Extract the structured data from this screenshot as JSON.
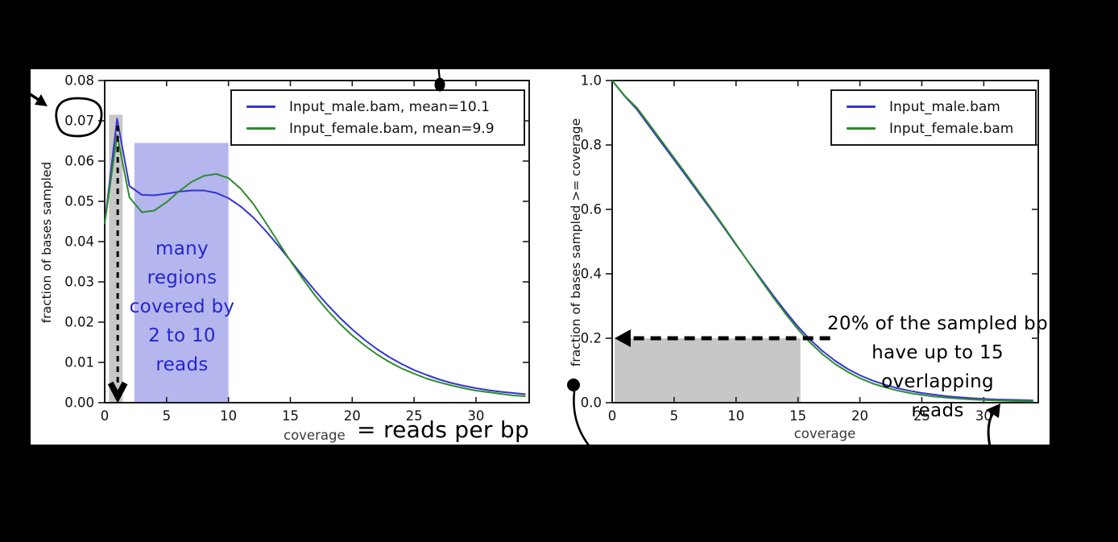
{
  "colors": {
    "male": "#3434d2",
    "female": "#2e8b2e",
    "band_gray": "#c7c7c7",
    "region_blue": "#b6b6ee",
    "annotation_blue": "#2525cc",
    "ink": "#000000",
    "axis_label_gray": "#3a3a3a",
    "panel": "#ffffff",
    "background": "#000000"
  },
  "chart_data": [
    {
      "id": "coverage-histogram",
      "type": "line",
      "xlabel": "coverage",
      "xlabel_handwritten": "= reads per bp",
      "ylabel": "fraction of bases sampled",
      "xlim": [
        0,
        34.3
      ],
      "ylim": [
        0,
        0.08
      ],
      "xticks": [
        0,
        5,
        10,
        15,
        20,
        25,
        30
      ],
      "yticks": [
        "0.00",
        "0.01",
        "0.02",
        "0.03",
        "0.04",
        "0.05",
        "0.06",
        "0.07",
        "0.08"
      ],
      "grid": false,
      "legend_position": "upper right",
      "circled_tick": "0.07",
      "annotation": {
        "text": "many\nregions\ncovered by\n2 to 10\nreads"
      },
      "series": [
        {
          "name": "Input_male.bam, mean=10.1",
          "color_key": "male",
          "points": [
            [
              0,
              0.0445
            ],
            [
              1,
              0.0705
            ],
            [
              2,
              0.0538
            ],
            [
              3,
              0.0516
            ],
            [
              4,
              0.0515
            ],
            [
              5,
              0.0519
            ],
            [
              6,
              0.0524
            ],
            [
              7,
              0.0527
            ],
            [
              8,
              0.0527
            ],
            [
              9,
              0.0521
            ],
            [
              10,
              0.0508
            ],
            [
              11,
              0.0487
            ],
            [
              12,
              0.046
            ],
            [
              13,
              0.0427
            ],
            [
              14,
              0.0391
            ],
            [
              15,
              0.0353
            ],
            [
              16,
              0.0315
            ],
            [
              17,
              0.0278
            ],
            [
              18,
              0.0243
            ],
            [
              19,
              0.0211
            ],
            [
              20,
              0.0182
            ],
            [
              21,
              0.0156
            ],
            [
              22,
              0.0133
            ],
            [
              23,
              0.0113
            ],
            [
              24,
              0.0096
            ],
            [
              25,
              0.0081
            ],
            [
              26,
              0.0069
            ],
            [
              27,
              0.0058
            ],
            [
              28,
              0.0049
            ],
            [
              29,
              0.0042
            ],
            [
              30,
              0.0036
            ],
            [
              31,
              0.0031
            ],
            [
              32,
              0.0027
            ],
            [
              33,
              0.0024
            ],
            [
              34,
              0.0021
            ]
          ]
        },
        {
          "name": "Input_female.bam, mean=9.9",
          "color_key": "female",
          "points": [
            [
              0,
              0.0445
            ],
            [
              1,
              0.0665
            ],
            [
              2,
              0.051
            ],
            [
              3,
              0.0473
            ],
            [
              4,
              0.0477
            ],
            [
              5,
              0.0498
            ],
            [
              6,
              0.0525
            ],
            [
              7,
              0.0548
            ],
            [
              8,
              0.0563
            ],
            [
              9,
              0.0568
            ],
            [
              10,
              0.0558
            ],
            [
              11,
              0.0531
            ],
            [
              12,
              0.0494
            ],
            [
              13,
              0.0448
            ],
            [
              14,
              0.04
            ],
            [
              15,
              0.0352
            ],
            [
              16,
              0.0308
            ],
            [
              17,
              0.0266
            ],
            [
              18,
              0.0229
            ],
            [
              19,
              0.0196
            ],
            [
              20,
              0.0167
            ],
            [
              21,
              0.0142
            ],
            [
              22,
              0.012
            ],
            [
              23,
              0.0101
            ],
            [
              24,
              0.0085
            ],
            [
              25,
              0.0072
            ],
            [
              26,
              0.006
            ],
            [
              27,
              0.0051
            ],
            [
              28,
              0.0043
            ],
            [
              29,
              0.0036
            ],
            [
              30,
              0.003
            ],
            [
              31,
              0.0026
            ],
            [
              32,
              0.0022
            ],
            [
              33,
              0.0018
            ],
            [
              34,
              0.0016
            ]
          ]
        }
      ],
      "regions": [
        {
          "name": "single-coverage-peak-band",
          "color_key": "band_gray",
          "x0": 0.35,
          "x1": 1.45,
          "y0": 0,
          "y1": 0.0715
        },
        {
          "name": "reads-2-to-10-region",
          "color_key": "region_blue",
          "x0": 2.4,
          "x1": 10.0,
          "y0": 0,
          "y1": 0.0645
        }
      ],
      "arrows": [
        {
          "name": "peak-down-dashed-arrow",
          "style": "dashed-down",
          "x": 1.05,
          "y_from": 0.0688,
          "y_to": 0.0015
        }
      ]
    },
    {
      "id": "coverage-cumulative",
      "type": "line",
      "xlabel": "coverage",
      "ylabel": "fraction of bases sampled >= coverage",
      "xlim": [
        0,
        34.4
      ],
      "ylim": [
        0,
        1.0
      ],
      "xticks": [
        0,
        5,
        10,
        15,
        20,
        25,
        30
      ],
      "yticks": [
        "0.0",
        "0.2",
        "0.4",
        "0.6",
        "0.8",
        "1.0"
      ],
      "grid": false,
      "legend_position": "upper right",
      "annotation": {
        "text": "20% of the sampled bp\nhave up to 15 overlapping\nreads"
      },
      "series": [
        {
          "name": "Input_male.bam",
          "color_key": "male",
          "points": [
            [
              0,
              1.0
            ],
            [
              1,
              0.952
            ],
            [
              2,
              0.91
            ],
            [
              3,
              0.858
            ],
            [
              4,
              0.806
            ],
            [
              5,
              0.754
            ],
            [
              6,
              0.702
            ],
            [
              7,
              0.65
            ],
            [
              8,
              0.598
            ],
            [
              9,
              0.545
            ],
            [
              10,
              0.49
            ],
            [
              11,
              0.437
            ],
            [
              12,
              0.385
            ],
            [
              13,
              0.333
            ],
            [
              14,
              0.283
            ],
            [
              15,
              0.236
            ],
            [
              16,
              0.195
            ],
            [
              17,
              0.16
            ],
            [
              18,
              0.13
            ],
            [
              19,
              0.105
            ],
            [
              20,
              0.085
            ],
            [
              21,
              0.069
            ],
            [
              22,
              0.056
            ],
            [
              23,
              0.045
            ],
            [
              24,
              0.037
            ],
            [
              25,
              0.03
            ],
            [
              26,
              0.025
            ],
            [
              27,
              0.02
            ],
            [
              28,
              0.017
            ],
            [
              29,
              0.014
            ],
            [
              30,
              0.012
            ],
            [
              31,
              0.01
            ],
            [
              32,
              0.009
            ],
            [
              33,
              0.008
            ],
            [
              34,
              0.007
            ]
          ]
        },
        {
          "name": "Input_female.bam",
          "color_key": "female",
          "points": [
            [
              0,
              1.0
            ],
            [
              1,
              0.953
            ],
            [
              2,
              0.915
            ],
            [
              3,
              0.864
            ],
            [
              4,
              0.812
            ],
            [
              5,
              0.76
            ],
            [
              6,
              0.708
            ],
            [
              7,
              0.655
            ],
            [
              8,
              0.602
            ],
            [
              9,
              0.548
            ],
            [
              10,
              0.492
            ],
            [
              11,
              0.436
            ],
            [
              12,
              0.381
            ],
            [
              13,
              0.327
            ],
            [
              14,
              0.276
            ],
            [
              15,
              0.228
            ],
            [
              16,
              0.186
            ],
            [
              17,
              0.15
            ],
            [
              18,
              0.12
            ],
            [
              19,
              0.096
            ],
            [
              20,
              0.076
            ],
            [
              21,
              0.06
            ],
            [
              22,
              0.048
            ],
            [
              23,
              0.038
            ],
            [
              24,
              0.03
            ],
            [
              25,
              0.024
            ],
            [
              26,
              0.019
            ],
            [
              27,
              0.0155
            ],
            [
              28,
              0.0125
            ],
            [
              29,
              0.01
            ],
            [
              30,
              0.008
            ],
            [
              31,
              0.0067
            ],
            [
              32,
              0.0056
            ],
            [
              33,
              0.0047
            ],
            [
              34,
              0.004
            ]
          ]
        }
      ],
      "regions": [
        {
          "name": "up-to-15-reads-region",
          "color_key": "band_gray",
          "x0": 0.2,
          "x1": 15.2,
          "y0": 0,
          "y1": 0.2
        }
      ],
      "arrows": [
        {
          "name": "twenty-percent-left-dashed-arrow",
          "style": "dashed-left",
          "y": 0.2,
          "x_from": 17.6,
          "x_to": 1.3
        }
      ]
    }
  ]
}
